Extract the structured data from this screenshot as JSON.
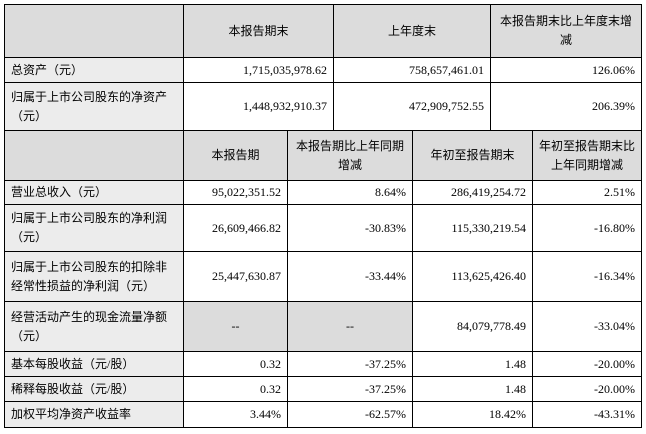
{
  "balance": {
    "headers": [
      "本报告期末",
      "上年度末",
      "本报告期末比上年度末增减"
    ],
    "rows": [
      {
        "label": "总资产（元）",
        "values": [
          "1,715,035,978.62",
          "758,657,461.01",
          "126.06%"
        ]
      },
      {
        "label": "归属于上市公司股东的净资产（元）",
        "values": [
          "1,448,932,910.37",
          "472,909,752.55",
          "206.39%"
        ]
      }
    ]
  },
  "income": {
    "headers": [
      "本报告期",
      "本报告期比上年同期增减",
      "年初至报告期末",
      "年初至报告期末比上年同期增减"
    ],
    "rows": [
      {
        "label": "营业总收入（元）",
        "values": [
          "95,022,351.52",
          "8.64%",
          "286,419,254.72",
          "2.51%"
        ]
      },
      {
        "label": "归属于上市公司股东的净利润（元）",
        "values": [
          "26,609,466.82",
          "-30.83%",
          "115,330,219.54",
          "-16.80%"
        ]
      },
      {
        "label": "归属于上市公司股东的扣除非经常性损益的净利润（元）",
        "values": [
          "25,447,630.87",
          "-33.44%",
          "113,625,426.40",
          "-16.34%"
        ]
      },
      {
        "label": "经营活动产生的现金流量净额（元）",
        "values": [
          "--",
          "--",
          "84,079,778.49",
          "-33.04%"
        ]
      },
      {
        "label": "基本每股收益（元/股）",
        "values": [
          "0.32",
          "-37.25%",
          "1.48",
          "-20.00%"
        ]
      },
      {
        "label": "稀释每股收益（元/股）",
        "values": [
          "0.32",
          "-37.25%",
          "1.48",
          "-20.00%"
        ]
      },
      {
        "label": "加权平均净资产收益率",
        "values": [
          "3.44%",
          "-62.57%",
          "18.42%",
          "-43.31%"
        ]
      }
    ]
  }
}
